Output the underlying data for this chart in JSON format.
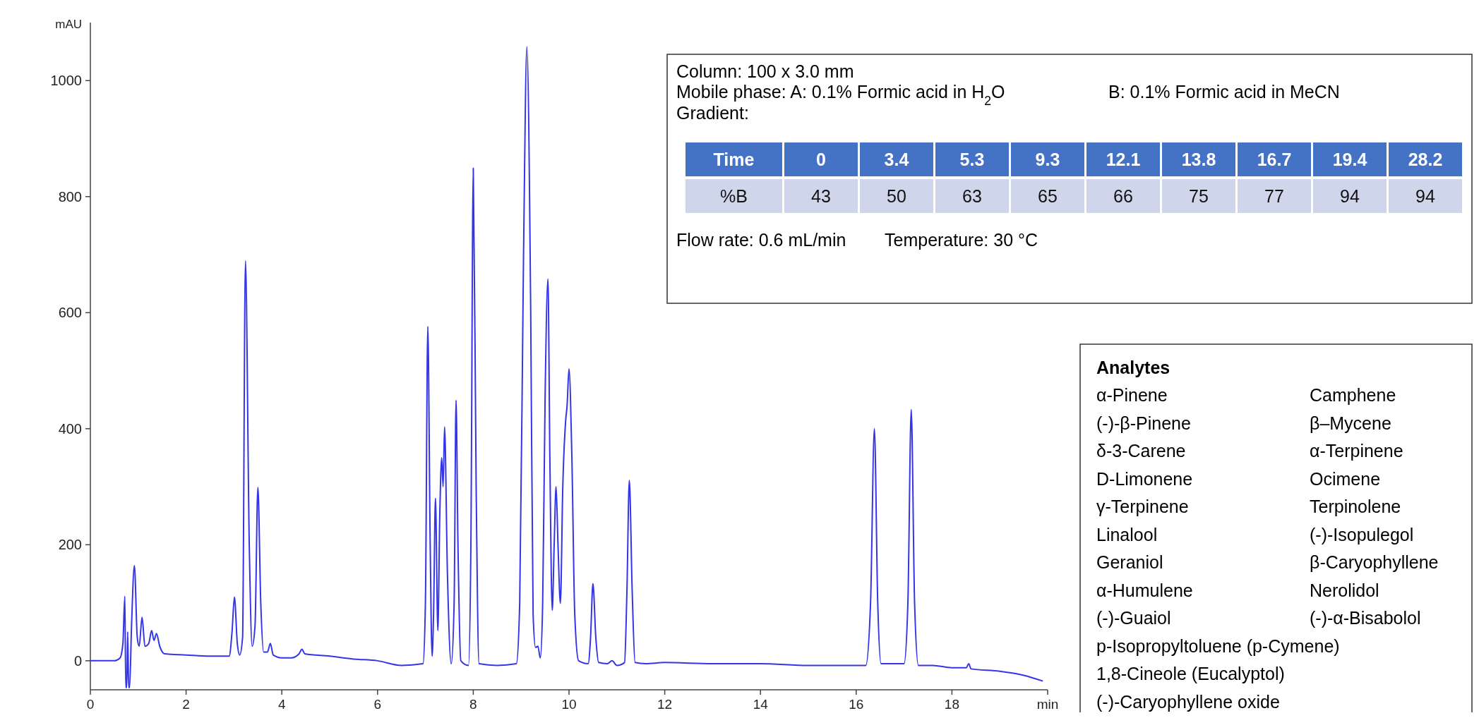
{
  "chart_data": {
    "type": "line",
    "ylabel": "mAU",
    "xlim": [
      0,
      20
    ],
    "ylim": [
      -50,
      1100
    ],
    "xticks": [
      0,
      2,
      4,
      6,
      8,
      10,
      12,
      14,
      16,
      18,
      {
        "value": 20,
        "label": "min"
      }
    ],
    "yticks": [
      0,
      200,
      400,
      600,
      800,
      1000
    ],
    "grid": false,
    "marker": "none",
    "line_style": "solid",
    "series": [
      {
        "color": "#3535e8",
        "x": [
          0,
          0.5,
          0.62,
          0.68,
          0.72,
          0.74,
          0.76,
          0.78,
          0.8,
          0.82,
          0.86,
          0.92,
          0.98,
          1.02,
          1.08,
          1.14,
          1.22,
          1.28,
          1.33,
          1.38,
          1.45,
          1.55,
          2.0,
          2.5,
          2.9,
          2.96,
          3.01,
          3.07,
          3.12,
          3.18,
          3.24,
          3.32,
          3.38,
          3.44,
          3.5,
          3.56,
          3.62,
          3.7,
          3.76,
          3.82,
          4.0,
          4.2,
          4.36,
          4.42,
          4.48,
          5.0,
          5.5,
          6.0,
          6.5,
          6.95,
          7.0,
          7.05,
          7.1,
          7.14,
          7.17,
          7.21,
          7.26,
          7.3,
          7.34,
          7.37,
          7.4,
          7.46,
          7.54,
          7.6,
          7.64,
          7.68,
          7.74,
          7.9,
          7.95,
          8.0,
          8.06,
          8.12,
          8.5,
          8.9,
          8.97,
          9.05,
          9.12,
          9.2,
          9.25,
          9.3,
          9.35,
          9.4,
          9.45,
          9.5,
          9.56,
          9.6,
          9.65,
          9.69,
          9.73,
          9.77,
          9.82,
          9.87,
          9.93,
          9.96,
          10.0,
          10.06,
          10.12,
          10.2,
          10.4,
          10.45,
          10.5,
          10.56,
          10.62,
          10.8,
          10.9,
          11.0,
          11.16,
          11.21,
          11.26,
          11.32,
          11.38,
          11.6,
          12,
          13,
          14,
          15,
          16.2,
          16.3,
          16.38,
          16.45,
          16.52,
          17.0,
          17.08,
          17.15,
          17.22,
          17.3,
          17.6,
          18,
          18.3,
          18.35,
          18.4,
          19,
          19.5,
          19.9
        ],
        "values": [
          0,
          0,
          5,
          30,
          111,
          -46,
          -46,
          50,
          -46,
          -46,
          60,
          164,
          40,
          25,
          75,
          25,
          30,
          52,
          35,
          47,
          25,
          12,
          10,
          8,
          8,
          50,
          110,
          30,
          10,
          40,
          689,
          200,
          25,
          60,
          299,
          100,
          15,
          15,
          30,
          10,
          5,
          5,
          12,
          20,
          12,
          8,
          3,
          0,
          -8,
          -5,
          100,
          576,
          200,
          8,
          80,
          280,
          52,
          250,
          350,
          300,
          403,
          150,
          -5,
          100,
          449,
          200,
          0,
          -8,
          200,
          849,
          300,
          -5,
          -8,
          -5,
          100,
          700,
          1058,
          600,
          80,
          23,
          25,
          5,
          100,
          450,
          658,
          350,
          87,
          200,
          300,
          200,
          99,
          300,
          414,
          440,
          503,
          350,
          80,
          0,
          -5,
          40,
          133,
          40,
          -3,
          -5,
          0,
          -8,
          -3,
          120,
          311,
          120,
          -3,
          -5,
          -3,
          -5,
          -5,
          -8,
          -8,
          100,
          400,
          100,
          -5,
          -5,
          100,
          433,
          100,
          -8,
          -8,
          -12,
          -12,
          -5,
          -14,
          -18,
          -25,
          -35
        ]
      }
    ],
    "annotations": [
      "Column: 100 x 3.0 mm",
      "Mobile phase: A: 0.1% Formic acid in H$_{2}$O",
      "B: 0.1% Formic acid in MeCN",
      "Gradient:",
      "Time",
      "0",
      "3.4",
      "5.3",
      "9.3",
      "12.1",
      "13.8",
      "16.7",
      "19.4",
      "28.2",
      "%B",
      "43",
      "50",
      "63",
      "65",
      "66",
      "75",
      "77",
      "94",
      "94",
      "Flow rate: 0.6 mL/min",
      "Temperature: 30 °C",
      "Analytes",
      "α-Pinene",
      "Camphene",
      "(-)-β-Pinene",
      "β–Mycene",
      "δ-3-Carene",
      "α-Terpinene",
      "D-Limonene",
      "Ocimene",
      "γ-Terpinene",
      "Terpinolene",
      "Linalool",
      "(-)-Isopulegol",
      "Geraniol",
      "β-Caryophyllene",
      "α-Humulene",
      "Nerolidol",
      "(-)-Guaiol",
      "(-)-α-Bisabolol",
      "p-Isopropyltoluene (p-Cymene)",
      "1,8-Cineole (Eucalyptol)",
      "(-)-Caryophyllene oxide"
    ]
  }
}
